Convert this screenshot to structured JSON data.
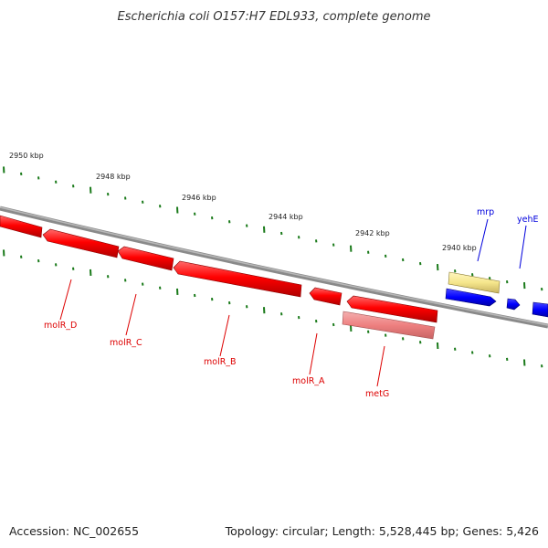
{
  "title": "Escherichia coli O157:H7 EDL933, complete genome",
  "footer": {
    "accession": "Accession: NC_002655",
    "summary": "Topology: circular; Length: 5,528,445 bp; Genes: 5,426"
  },
  "scale_labels": [
    "2950 kbp",
    "2948 kbp",
    "2946 kbp",
    "2944 kbp",
    "2942 kbp",
    "2940 kbp"
  ],
  "genes": [
    {
      "name": "molR_D",
      "color": "#dd0000"
    },
    {
      "name": "molR_C",
      "color": "#dd0000"
    },
    {
      "name": "molR_B",
      "color": "#dd0000"
    },
    {
      "name": "molR_A",
      "color": "#dd0000"
    },
    {
      "name": "metG",
      "color": "#dd0000"
    },
    {
      "name": "mrp",
      "color": "#0000dd"
    },
    {
      "name": "yehE",
      "color": "#0000dd"
    }
  ],
  "colors": {
    "backbone": "#808080",
    "ticks": "#1a7a1a",
    "forward_strand": "#0000ff",
    "reverse_strand": "#ff0000",
    "reverse_light": "#f08080",
    "forward_light": "#f5e68c"
  }
}
